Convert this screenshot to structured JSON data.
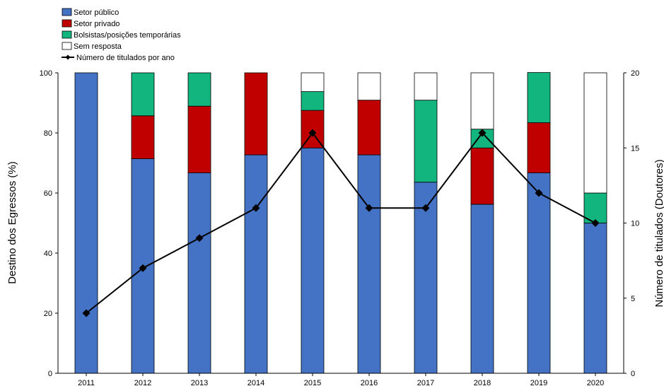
{
  "chart_data": {
    "type": "bar",
    "stacked": true,
    "categories": [
      "2011",
      "2012",
      "2013",
      "2014",
      "2015",
      "2016",
      "2017",
      "2018",
      "2019",
      "2020"
    ],
    "series": [
      {
        "name": "Setor público",
        "color": "#4472C4",
        "values": [
          100,
          71.4,
          66.7,
          72.7,
          75.0,
          72.7,
          63.6,
          56.25,
          66.7,
          50.0
        ]
      },
      {
        "name": "Setor privado",
        "color": "#C00000",
        "values": [
          0,
          14.3,
          22.2,
          27.3,
          12.5,
          18.2,
          0,
          18.75,
          16.7,
          0
        ]
      },
      {
        "name": "Bolsistas/posições temporárias",
        "color": "#13B57E",
        "values": [
          0,
          14.3,
          11.1,
          0,
          6.25,
          0,
          27.3,
          6.25,
          16.7,
          10.0
        ]
      },
      {
        "name": "Sem resposta",
        "color": "#FFFFFF",
        "values": [
          0,
          0,
          0,
          0,
          6.25,
          9.1,
          9.1,
          18.75,
          0,
          40.0
        ]
      }
    ],
    "line_series": {
      "name": "Número de titulados por ano",
      "color": "#000000",
      "axis": "right",
      "values": [
        4,
        7,
        9,
        11,
        16,
        11,
        11,
        16,
        12,
        10
      ]
    },
    "ylabel": "Destino dos Egressos (%)",
    "ylabel_right": "Número de titulados (Doutores)",
    "ylim": [
      0,
      100
    ],
    "ylim_right": [
      0,
      20
    ],
    "yticks": [
      "0",
      "20",
      "40",
      "60",
      "80",
      "100"
    ],
    "yticks_right": [
      "0",
      "5",
      "10",
      "15",
      "20"
    ],
    "grid": false,
    "legend_position": "top-left"
  }
}
